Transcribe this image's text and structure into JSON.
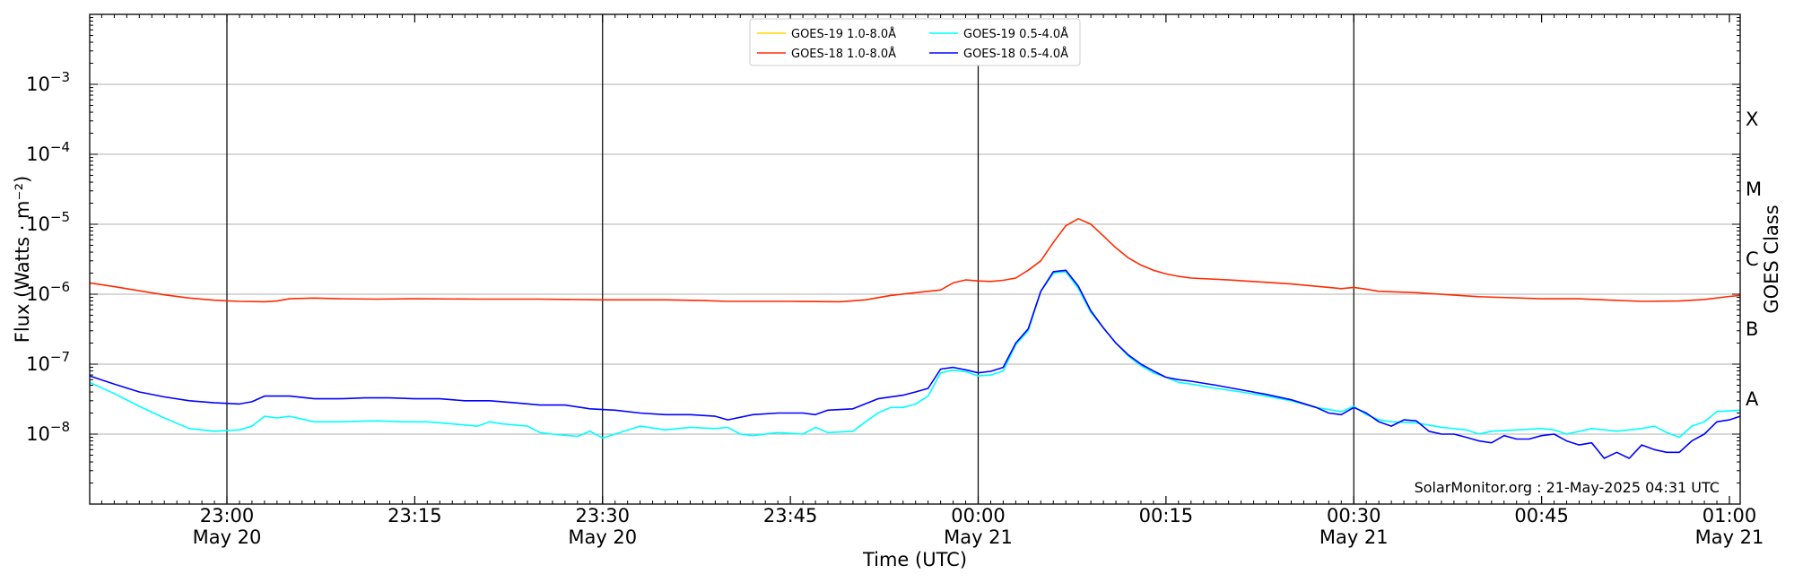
{
  "chart_data": {
    "type": "line",
    "xlabel": "Time (UTC)",
    "ylabel": "Flux (Watts · m⁻²)",
    "y2label": "GOES Class",
    "yscale": "log",
    "ylim": [
      1e-09,
      0.01
    ],
    "xlim_minutes": [
      -18.5,
      60.5
    ],
    "credit": "SolarMonitor.org : 21-May-2025 04:31 UTC",
    "legend_location": "upper center",
    "grid": "horizontal",
    "x_ticks": [
      {
        "label": "23:00",
        "date": "May 20",
        "t": 0
      },
      {
        "label": "23:15",
        "date": "",
        "t": 15
      },
      {
        "label": "23:30",
        "date": "May 20",
        "t": 30
      },
      {
        "label": "23:45",
        "date": "",
        "t": 45
      },
      {
        "label": "00:00",
        "date": "May 21",
        "t": 60
      },
      {
        "label": "00:15",
        "date": "",
        "t": 75
      },
      {
        "label": "00:30",
        "date": "May 21",
        "t": 90
      },
      {
        "label": "00:45",
        "date": "",
        "t": 105
      },
      {
        "label": "01:00",
        "date": "May 21",
        "t": 120
      }
    ],
    "vlines": [
      0,
      30,
      60,
      90
    ],
    "y_ticks": [
      {
        "mantissa": "10",
        "exp": "−8",
        "value": 1e-08
      },
      {
        "mantissa": "10",
        "exp": "−7",
        "value": 1e-07
      },
      {
        "mantissa": "10",
        "exp": "−6",
        "value": 1e-06
      },
      {
        "mantissa": "10",
        "exp": "−5",
        "value": 1e-05
      },
      {
        "mantissa": "10",
        "exp": "−4",
        "value": 0.0001
      },
      {
        "mantissa": "10",
        "exp": "−3",
        "value": 0.001
      }
    ],
    "goes_classes": [
      {
        "label": "A",
        "value": 3.16e-08
      },
      {
        "label": "B",
        "value": 3.16e-07
      },
      {
        "label": "C",
        "value": 3.16e-06
      },
      {
        "label": "M",
        "value": 3.16e-05
      },
      {
        "label": "X",
        "value": 0.000316
      }
    ],
    "x_unit": "minutes after 23:00 May 20",
    "series": [
      {
        "name": "GOES-19 1.0-8.0Å",
        "color": "#ffd700",
        "points": []
      },
      {
        "name": "GOES-18 1.0-8.0Å",
        "color": "#ff2a00",
        "points": [
          [
            -11,
            1.45e-06
          ],
          [
            -9,
            1.28e-06
          ],
          [
            -7,
            1.12e-06
          ],
          [
            -5,
            9.8e-07
          ],
          [
            -3,
            8.8e-07
          ],
          [
            -1,
            8.2e-07
          ],
          [
            1,
            7.9e-07
          ],
          [
            3,
            7.8e-07
          ],
          [
            4,
            8e-07
          ],
          [
            5,
            8.6e-07
          ],
          [
            7,
            8.8e-07
          ],
          [
            9,
            8.6e-07
          ],
          [
            12,
            8.5e-07
          ],
          [
            15,
            8.6e-07
          ],
          [
            20,
            8.5e-07
          ],
          [
            25,
            8.5e-07
          ],
          [
            30,
            8.3e-07
          ],
          [
            35,
            8.3e-07
          ],
          [
            38,
            8.1e-07
          ],
          [
            40,
            7.9e-07
          ],
          [
            45,
            7.9e-07
          ],
          [
            49,
            7.8e-07
          ],
          [
            51,
            8.3e-07
          ],
          [
            53,
            9.6e-07
          ],
          [
            55,
            1.05e-06
          ],
          [
            57,
            1.15e-06
          ],
          [
            58,
            1.45e-06
          ],
          [
            59,
            1.6e-06
          ],
          [
            60,
            1.55e-06
          ],
          [
            61,
            1.52e-06
          ],
          [
            62,
            1.58e-06
          ],
          [
            63,
            1.7e-06
          ],
          [
            64,
            2.2e-06
          ],
          [
            65,
            3e-06
          ],
          [
            66,
            5.5e-06
          ],
          [
            67,
            9.5e-06
          ],
          [
            68,
            1.2e-05
          ],
          [
            69,
            1e-05
          ],
          [
            70,
            6.8e-06
          ],
          [
            71,
            4.6e-06
          ],
          [
            72,
            3.3e-06
          ],
          [
            73,
            2.6e-06
          ],
          [
            74,
            2.2e-06
          ],
          [
            75,
            1.95e-06
          ],
          [
            76,
            1.8e-06
          ],
          [
            77,
            1.7e-06
          ],
          [
            80,
            1.6e-06
          ],
          [
            85,
            1.4e-06
          ],
          [
            88,
            1.25e-06
          ],
          [
            89,
            1.2e-06
          ],
          [
            90,
            1.25e-06
          ],
          [
            91,
            1.18e-06
          ],
          [
            92,
            1.1e-06
          ],
          [
            95,
            1.05e-06
          ],
          [
            100,
            9.2e-07
          ],
          [
            105,
            8.6e-07
          ],
          [
            108,
            8.6e-07
          ],
          [
            110,
            8.3e-07
          ],
          [
            113,
            7.9e-07
          ],
          [
            116,
            8e-07
          ],
          [
            118,
            8.4e-07
          ],
          [
            120,
            9.3e-07
          ],
          [
            121,
            9.6e-07
          ]
        ]
      },
      {
        "name": "GOES-19 0.5-4.0Å",
        "color": "#00ffff",
        "points": [
          [
            -11,
            5.5e-08
          ],
          [
            -9,
            3.8e-08
          ],
          [
            -7,
            2.5e-08
          ],
          [
            -5,
            1.7e-08
          ],
          [
            -3,
            1.2e-08
          ],
          [
            -1,
            1.1e-08
          ],
          [
            1,
            1.15e-08
          ],
          [
            2,
            1.3e-08
          ],
          [
            3,
            1.8e-08
          ],
          [
            4,
            1.7e-08
          ],
          [
            5,
            1.8e-08
          ],
          [
            7,
            1.5e-08
          ],
          [
            9,
            1.5e-08
          ],
          [
            12,
            1.55e-08
          ],
          [
            14,
            1.5e-08
          ],
          [
            16,
            1.5e-08
          ],
          [
            18,
            1.4e-08
          ],
          [
            20,
            1.3e-08
          ],
          [
            21,
            1.5e-08
          ],
          [
            22,
            1.4e-08
          ],
          [
            24,
            1.3e-08
          ],
          [
            25,
            1.05e-08
          ],
          [
            26,
            1e-08
          ],
          [
            28,
            9.3e-09
          ],
          [
            29,
            1.1e-08
          ],
          [
            30,
            8.8e-09
          ],
          [
            31,
            1e-08
          ],
          [
            33,
            1.3e-08
          ],
          [
            35,
            1.15e-08
          ],
          [
            37,
            1.25e-08
          ],
          [
            39,
            1.2e-08
          ],
          [
            40,
            1.25e-08
          ],
          [
            41,
            1e-08
          ],
          [
            42,
            9.5e-09
          ],
          [
            44,
            1.05e-08
          ],
          [
            46,
            1e-08
          ],
          [
            47,
            1.25e-08
          ],
          [
            48,
            1.05e-08
          ],
          [
            50,
            1.1e-08
          ],
          [
            51,
            1.5e-08
          ],
          [
            52,
            2e-08
          ],
          [
            53,
            2.4e-08
          ],
          [
            54,
            2.4e-08
          ],
          [
            55,
            2.7e-08
          ],
          [
            56,
            3.5e-08
          ],
          [
            57,
            7.5e-08
          ],
          [
            58,
            8.2e-08
          ],
          [
            59,
            7.8e-08
          ],
          [
            60,
            6.8e-08
          ],
          [
            61,
            7e-08
          ],
          [
            62,
            8e-08
          ],
          [
            63,
            1.9e-07
          ],
          [
            64,
            3e-07
          ],
          [
            65,
            1.1e-06
          ],
          [
            66,
            2e-06
          ],
          [
            67,
            2.1e-06
          ],
          [
            68,
            1.2e-06
          ],
          [
            69,
            5.5e-07
          ],
          [
            70,
            3.3e-07
          ],
          [
            71,
            2e-07
          ],
          [
            72,
            1.3e-07
          ],
          [
            73,
            9.5e-08
          ],
          [
            74,
            7.5e-08
          ],
          [
            75,
            6.5e-08
          ],
          [
            76,
            5.5e-08
          ],
          [
            77,
            5.2e-08
          ],
          [
            79,
            4.5e-08
          ],
          [
            81,
            4e-08
          ],
          [
            83,
            3.5e-08
          ],
          [
            85,
            3e-08
          ],
          [
            87,
            2.4e-08
          ],
          [
            89,
            2.1e-08
          ],
          [
            90,
            2.5e-08
          ],
          [
            91,
            1.9e-08
          ],
          [
            92,
            1.6e-08
          ],
          [
            93,
            1.5e-08
          ],
          [
            95,
            1.45e-08
          ],
          [
            97,
            1.25e-08
          ],
          [
            99,
            1.15e-08
          ],
          [
            100,
            1e-08
          ],
          [
            101,
            1.1e-08
          ],
          [
            103,
            1.15e-08
          ],
          [
            105,
            1.2e-08
          ],
          [
            106,
            1.15e-08
          ],
          [
            107,
            1e-08
          ],
          [
            109,
            1.2e-08
          ],
          [
            111,
            1.1e-08
          ],
          [
            113,
            1.2e-08
          ],
          [
            114,
            1.3e-08
          ],
          [
            115,
            1.05e-08
          ],
          [
            116,
            9e-09
          ],
          [
            117,
            1.3e-08
          ],
          [
            118,
            1.5e-08
          ],
          [
            119,
            2.1e-08
          ],
          [
            121,
            2.2e-08
          ]
        ]
      },
      {
        "name": "GOES-18 0.5-4.0Å",
        "color": "#0000ff",
        "points": [
          [
            -11,
            6.8e-08
          ],
          [
            -9,
            5.2e-08
          ],
          [
            -7,
            4e-08
          ],
          [
            -5,
            3.4e-08
          ],
          [
            -3,
            3e-08
          ],
          [
            -1,
            2.8e-08
          ],
          [
            1,
            2.7e-08
          ],
          [
            2,
            2.9e-08
          ],
          [
            3,
            3.5e-08
          ],
          [
            5,
            3.5e-08
          ],
          [
            7,
            3.2e-08
          ],
          [
            9,
            3.2e-08
          ],
          [
            11,
            3.3e-08
          ],
          [
            13,
            3.3e-08
          ],
          [
            15,
            3.2e-08
          ],
          [
            17,
            3.2e-08
          ],
          [
            19,
            3e-08
          ],
          [
            21,
            3e-08
          ],
          [
            23,
            2.8e-08
          ],
          [
            25,
            2.6e-08
          ],
          [
            27,
            2.6e-08
          ],
          [
            29,
            2.3e-08
          ],
          [
            31,
            2.2e-08
          ],
          [
            33,
            2e-08
          ],
          [
            35,
            1.9e-08
          ],
          [
            37,
            1.9e-08
          ],
          [
            39,
            1.8e-08
          ],
          [
            40,
            1.6e-08
          ],
          [
            42,
            1.9e-08
          ],
          [
            44,
            2e-08
          ],
          [
            46,
            2e-08
          ],
          [
            47,
            1.9e-08
          ],
          [
            48,
            2.2e-08
          ],
          [
            50,
            2.3e-08
          ],
          [
            52,
            3.2e-08
          ],
          [
            54,
            3.6e-08
          ],
          [
            55,
            4e-08
          ],
          [
            56,
            4.5e-08
          ],
          [
            57,
            8.5e-08
          ],
          [
            58,
            9e-08
          ],
          [
            59,
            8.3e-08
          ],
          [
            60,
            7.5e-08
          ],
          [
            61,
            7.9e-08
          ],
          [
            62,
            9e-08
          ],
          [
            63,
            2e-07
          ],
          [
            64,
            3.2e-07
          ],
          [
            65,
            1.1e-06
          ],
          [
            66,
            2.1e-06
          ],
          [
            67,
            2.2e-06
          ],
          [
            68,
            1.3e-06
          ],
          [
            69,
            5.8e-07
          ],
          [
            70,
            3.3e-07
          ],
          [
            71,
            2e-07
          ],
          [
            72,
            1.35e-07
          ],
          [
            73,
            1e-07
          ],
          [
            74,
            8e-08
          ],
          [
            75,
            6.5e-08
          ],
          [
            76,
            6e-08
          ],
          [
            77,
            5.7e-08
          ],
          [
            79,
            5e-08
          ],
          [
            81,
            4.3e-08
          ],
          [
            83,
            3.7e-08
          ],
          [
            85,
            3.1e-08
          ],
          [
            87,
            2.4e-08
          ],
          [
            88,
            2e-08
          ],
          [
            89,
            1.9e-08
          ],
          [
            90,
            2.4e-08
          ],
          [
            91,
            2e-08
          ],
          [
            92,
            1.5e-08
          ],
          [
            93,
            1.3e-08
          ],
          [
            94,
            1.6e-08
          ],
          [
            95,
            1.55e-08
          ],
          [
            96,
            1.1e-08
          ],
          [
            97,
            1e-08
          ],
          [
            98,
            1e-08
          ],
          [
            99,
            9e-09
          ],
          [
            100,
            8e-09
          ],
          [
            101,
            7.5e-09
          ],
          [
            102,
            9.5e-09
          ],
          [
            103,
            8.5e-09
          ],
          [
            104,
            8.5e-09
          ],
          [
            105,
            9.5e-09
          ],
          [
            106,
            1e-08
          ],
          [
            107,
            8e-09
          ],
          [
            108,
            7e-09
          ],
          [
            109,
            7.5e-09
          ],
          [
            110,
            4.5e-09
          ],
          [
            111,
            5.5e-09
          ],
          [
            112,
            4.5e-09
          ],
          [
            113,
            7e-09
          ],
          [
            114,
            6e-09
          ],
          [
            115,
            5.5e-09
          ],
          [
            116,
            5.5e-09
          ],
          [
            117,
            8e-09
          ],
          [
            118,
            1e-08
          ],
          [
            119,
            1.5e-08
          ],
          [
            120,
            1.6e-08
          ],
          [
            121,
            1.8e-08
          ]
        ]
      }
    ]
  }
}
